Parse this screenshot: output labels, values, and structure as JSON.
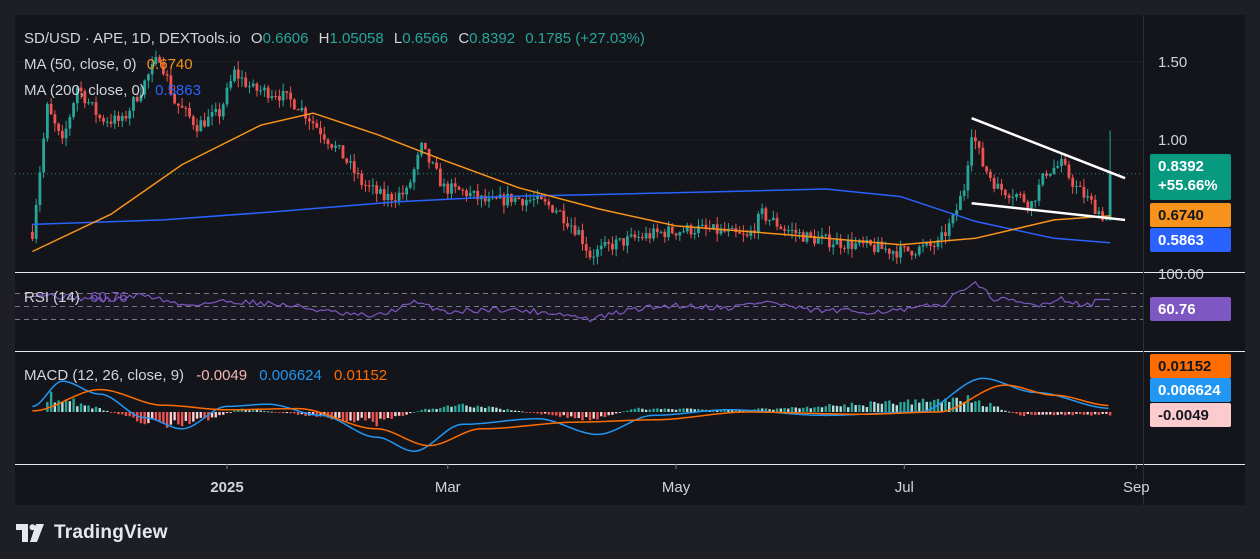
{
  "header": {
    "symbol": "SD/USD · APE, 1D, DEXTools.io",
    "open_label": "O",
    "open": "0.6606",
    "high_label": "H",
    "high": "1.05058",
    "low_label": "L",
    "low": "0.6566",
    "close_label": "C",
    "close": "0.8392",
    "change": "0.1785 (+27.03%)"
  },
  "indicators": {
    "ma50_label": "MA (50, close, 0)",
    "ma50_value": "0.6740",
    "ma200_label": "MA (200, close, 0)",
    "ma200_value": "0.5863",
    "rsi_label": "RSI (14)",
    "rsi_value": "60.76",
    "macd_label": "MACD (12, 26, close, 9)",
    "macd_hist": "-0.0049",
    "macd_line": "0.006624",
    "macd_signal": "0.01152"
  },
  "price_scale": {
    "ticks": [
      "1.50",
      "1.00"
    ],
    "rsi_top_tick": "100.00",
    "badges": {
      "price": "0.8392",
      "price_change": "+55.66%",
      "ma50": "0.6740",
      "ma200": "0.5863",
      "rsi": "60.76",
      "macd_signal": "0.01152",
      "macd_line": "0.006624",
      "macd_hist": "-0.0049"
    }
  },
  "time_axis": [
    "2025",
    "Mar",
    "May",
    "Jul",
    "Sep"
  ],
  "footer": {
    "logo_text": "TradingView",
    "logo_icon": "tradingview-logo-icon"
  },
  "colors": {
    "up": "#26a69a",
    "down": "#ef5350",
    "ma50": "#f7931a",
    "ma200": "#2962ff",
    "rsi": "#7e57c2",
    "macd": "#2196f3",
    "signal": "#ff6d00",
    "trendline": "#ffffff"
  },
  "chart_data": [
    {
      "type": "candlestick",
      "title": "SD/USD · APE, 1D, DEXTools.io",
      "x_range": [
        "2024-11-10",
        "2025-08-28"
      ],
      "y_scale": "log",
      "ylim": [
        0.42,
        1.75
      ],
      "y_ticks": [
        1.0,
        1.5
      ],
      "last": {
        "open": 0.6606,
        "high": 1.05058,
        "low": 0.6566,
        "close": 0.8392,
        "change": 0.1785,
        "change_pct": 27.03
      },
      "close_path": [
        {
          "date": "2024-11-10",
          "close": 0.62
        },
        {
          "date": "2024-11-14",
          "close": 1.18
        },
        {
          "date": "2024-11-18",
          "close": 0.98
        },
        {
          "date": "2024-11-22",
          "close": 1.32
        },
        {
          "date": "2024-11-28",
          "close": 1.12
        },
        {
          "date": "2024-12-04",
          "close": 1.1
        },
        {
          "date": "2024-12-10",
          "close": 1.35
        },
        {
          "date": "2024-12-14",
          "close": 1.55
        },
        {
          "date": "2024-12-18",
          "close": 1.22
        },
        {
          "date": "2024-12-24",
          "close": 1.08
        },
        {
          "date": "2024-12-30",
          "close": 1.15
        },
        {
          "date": "2025-01-03",
          "close": 1.42
        },
        {
          "date": "2025-01-08",
          "close": 1.3
        },
        {
          "date": "2025-01-14",
          "close": 1.28
        },
        {
          "date": "2025-01-20",
          "close": 1.2
        },
        {
          "date": "2025-01-26",
          "close": 1.05
        },
        {
          "date": "2025-02-01",
          "close": 0.92
        },
        {
          "date": "2025-02-06",
          "close": 0.8
        },
        {
          "date": "2025-02-12",
          "close": 0.74
        },
        {
          "date": "2025-02-18",
          "close": 0.76
        },
        {
          "date": "2025-02-22",
          "close": 0.96
        },
        {
          "date": "2025-02-28",
          "close": 0.78
        },
        {
          "date": "2025-03-06",
          "close": 0.76
        },
        {
          "date": "2025-03-12",
          "close": 0.72
        },
        {
          "date": "2025-03-18",
          "close": 0.74
        },
        {
          "date": "2025-03-24",
          "close": 0.73
        },
        {
          "date": "2025-03-30",
          "close": 0.7
        },
        {
          "date": "2025-04-05",
          "close": 0.62
        },
        {
          "date": "2025-04-08",
          "close": 0.55
        },
        {
          "date": "2025-04-14",
          "close": 0.58
        },
        {
          "date": "2025-04-20",
          "close": 0.6
        },
        {
          "date": "2025-04-28",
          "close": 0.62
        },
        {
          "date": "2025-05-06",
          "close": 0.63
        },
        {
          "date": "2025-05-14",
          "close": 0.62
        },
        {
          "date": "2025-05-20",
          "close": 0.6
        },
        {
          "date": "2025-05-24",
          "close": 0.68
        },
        {
          "date": "2025-05-30",
          "close": 0.63
        },
        {
          "date": "2025-06-06",
          "close": 0.6
        },
        {
          "date": "2025-06-12",
          "close": 0.59
        },
        {
          "date": "2025-06-18",
          "close": 0.58
        },
        {
          "date": "2025-06-24",
          "close": 0.57
        },
        {
          "date": "2025-06-30",
          "close": 0.56
        },
        {
          "date": "2025-07-06",
          "close": 0.57
        },
        {
          "date": "2025-07-10",
          "close": 0.58
        },
        {
          "date": "2025-07-14",
          "close": 0.66
        },
        {
          "date": "2025-07-17",
          "close": 0.78
        },
        {
          "date": "2025-07-19",
          "close": 1.05
        },
        {
          "date": "2025-07-22",
          "close": 0.88
        },
        {
          "date": "2025-07-26",
          "close": 0.78
        },
        {
          "date": "2025-07-30",
          "close": 0.76
        },
        {
          "date": "2025-08-04",
          "close": 0.72
        },
        {
          "date": "2025-08-08",
          "close": 0.85
        },
        {
          "date": "2025-08-12",
          "close": 0.88
        },
        {
          "date": "2025-08-16",
          "close": 0.78
        },
        {
          "date": "2025-08-20",
          "close": 0.72
        },
        {
          "date": "2025-08-24",
          "close": 0.6606
        },
        {
          "date": "2025-08-25",
          "close": 0.8392
        }
      ],
      "ma50": [
        {
          "date": "2024-11-10",
          "value": 0.56
        },
        {
          "date": "2024-12-01",
          "value": 0.68
        },
        {
          "date": "2024-12-20",
          "value": 0.88
        },
        {
          "date": "2025-01-10",
          "value": 1.08
        },
        {
          "date": "2025-01-24",
          "value": 1.15
        },
        {
          "date": "2025-02-10",
          "value": 1.03
        },
        {
          "date": "2025-02-28",
          "value": 0.9
        },
        {
          "date": "2025-03-20",
          "value": 0.78
        },
        {
          "date": "2025-04-10",
          "value": 0.7
        },
        {
          "date": "2025-05-01",
          "value": 0.64
        },
        {
          "date": "2025-06-01",
          "value": 0.61
        },
        {
          "date": "2025-06-30",
          "value": 0.58
        },
        {
          "date": "2025-07-20",
          "value": 0.6
        },
        {
          "date": "2025-08-10",
          "value": 0.66
        },
        {
          "date": "2025-08-25",
          "value": 0.674
        }
      ],
      "ma200": [
        {
          "date": "2024-11-10",
          "value": 0.645
        },
        {
          "date": "2024-12-15",
          "value": 0.66
        },
        {
          "date": "2025-01-15",
          "value": 0.69
        },
        {
          "date": "2025-02-15",
          "value": 0.725
        },
        {
          "date": "2025-03-15",
          "value": 0.745
        },
        {
          "date": "2025-04-15",
          "value": 0.755
        },
        {
          "date": "2025-05-15",
          "value": 0.765
        },
        {
          "date": "2025-06-10",
          "value": 0.775
        },
        {
          "date": "2025-06-30",
          "value": 0.745
        },
        {
          "date": "2025-07-20",
          "value": 0.655
        },
        {
          "date": "2025-08-10",
          "value": 0.6
        },
        {
          "date": "2025-08-25",
          "value": 0.5863
        }
      ],
      "trendlines": [
        {
          "from": {
            "date": "2025-07-19",
            "value": 1.12
          },
          "to": {
            "date": "2025-08-29",
            "value": 0.82
          }
        },
        {
          "from": {
            "date": "2025-07-19",
            "value": 0.72
          },
          "to": {
            "date": "2025-08-29",
            "value": 0.66
          }
        }
      ]
    },
    {
      "type": "line",
      "title": "RSI (14)",
      "ylim": [
        10,
        100
      ],
      "y_ticks": [
        100
      ],
      "guides": [
        70,
        50,
        30
      ],
      "series": [
        {
          "name": "RSI (14)",
          "values": [
            {
              "date": "2024-11-10",
              "value": 70
            },
            {
              "date": "2024-11-20",
              "value": 64
            },
            {
              "date": "2024-12-01",
              "value": 60
            },
            {
              "date": "2024-12-10",
              "value": 68
            },
            {
              "date": "2024-12-20",
              "value": 52
            },
            {
              "date": "2025-01-01",
              "value": 58
            },
            {
              "date": "2025-01-10",
              "value": 56
            },
            {
              "date": "2025-01-20",
              "value": 50
            },
            {
              "date": "2025-02-01",
              "value": 38
            },
            {
              "date": "2025-02-10",
              "value": 35
            },
            {
              "date": "2025-02-20",
              "value": 56
            },
            {
              "date": "2025-03-01",
              "value": 42
            },
            {
              "date": "2025-03-15",
              "value": 46
            },
            {
              "date": "2025-03-30",
              "value": 40
            },
            {
              "date": "2025-04-08",
              "value": 30
            },
            {
              "date": "2025-04-20",
              "value": 46
            },
            {
              "date": "2025-05-01",
              "value": 52
            },
            {
              "date": "2025-05-15",
              "value": 48
            },
            {
              "date": "2025-05-25",
              "value": 58
            },
            {
              "date": "2025-06-05",
              "value": 44
            },
            {
              "date": "2025-06-20",
              "value": 42
            },
            {
              "date": "2025-07-01",
              "value": 44
            },
            {
              "date": "2025-07-12",
              "value": 55
            },
            {
              "date": "2025-07-19",
              "value": 88
            },
            {
              "date": "2025-07-25",
              "value": 62
            },
            {
              "date": "2025-08-05",
              "value": 52
            },
            {
              "date": "2025-08-12",
              "value": 62
            },
            {
              "date": "2025-08-20",
              "value": 50
            },
            {
              "date": "2025-08-25",
              "value": 60.76
            }
          ]
        }
      ]
    },
    {
      "type": "line",
      "title": "MACD (12, 26, close, 9)",
      "ylim": [
        -0.09,
        0.09
      ],
      "series": [
        {
          "name": "MACD",
          "values": [
            {
              "date": "2024-11-10",
              "value": 0.01
            },
            {
              "date": "2024-11-18",
              "value": 0.055
            },
            {
              "date": "2024-11-28",
              "value": 0.032
            },
            {
              "date": "2024-12-10",
              "value": -0.01
            },
            {
              "date": "2024-12-20",
              "value": -0.03
            },
            {
              "date": "2025-01-01",
              "value": 0.01
            },
            {
              "date": "2025-01-12",
              "value": 0.014
            },
            {
              "date": "2025-01-26",
              "value": -0.006
            },
            {
              "date": "2025-02-10",
              "value": -0.045
            },
            {
              "date": "2025-02-20",
              "value": -0.07
            },
            {
              "date": "2025-03-05",
              "value": -0.022
            },
            {
              "date": "2025-03-25",
              "value": -0.012
            },
            {
              "date": "2025-04-10",
              "value": -0.04
            },
            {
              "date": "2025-04-25",
              "value": -0.006
            },
            {
              "date": "2025-05-15",
              "value": 0.004
            },
            {
              "date": "2025-06-10",
              "value": -0.006
            },
            {
              "date": "2025-07-05",
              "value": 0.0
            },
            {
              "date": "2025-07-22",
              "value": 0.06
            },
            {
              "date": "2025-08-05",
              "value": 0.035
            },
            {
              "date": "2025-08-25",
              "value": 0.006624
            }
          ]
        },
        {
          "name": "Signal",
          "values": [
            {
              "date": "2024-11-10",
              "value": 0.002
            },
            {
              "date": "2024-11-28",
              "value": 0.04
            },
            {
              "date": "2024-12-15",
              "value": 0.012
            },
            {
              "date": "2025-01-01",
              "value": 0.004
            },
            {
              "date": "2025-01-20",
              "value": 0.006
            },
            {
              "date": "2025-02-10",
              "value": -0.03
            },
            {
              "date": "2025-02-24",
              "value": -0.06
            },
            {
              "date": "2025-03-10",
              "value": -0.03
            },
            {
              "date": "2025-04-05",
              "value": -0.018
            },
            {
              "date": "2025-04-25",
              "value": -0.014
            },
            {
              "date": "2025-05-20",
              "value": 0.0
            },
            {
              "date": "2025-06-20",
              "value": -0.004
            },
            {
              "date": "2025-07-10",
              "value": 0.0
            },
            {
              "date": "2025-07-28",
              "value": 0.048
            },
            {
              "date": "2025-08-10",
              "value": 0.03
            },
            {
              "date": "2025-08-25",
              "value": 0.01152
            }
          ]
        },
        {
          "name": "Histogram",
          "values": [
            {
              "date": "2024-11-14",
              "value": 0.03
            },
            {
              "date": "2024-11-24",
              "value": 0.014
            },
            {
              "date": "2024-12-10",
              "value": -0.018
            },
            {
              "date": "2024-12-20",
              "value": -0.026
            },
            {
              "date": "2025-01-05",
              "value": 0.006
            },
            {
              "date": "2025-01-28",
              "value": -0.01
            },
            {
              "date": "2025-02-10",
              "value": -0.02
            },
            {
              "date": "2025-02-22",
              "value": 0.004
            },
            {
              "date": "2025-03-05",
              "value": 0.014
            },
            {
              "date": "2025-04-08",
              "value": -0.014
            },
            {
              "date": "2025-04-20",
              "value": 0.006
            },
            {
              "date": "2025-05-20",
              "value": 0.004
            },
            {
              "date": "2025-07-19",
              "value": 0.024
            },
            {
              "date": "2025-08-01",
              "value": -0.006
            },
            {
              "date": "2025-08-25",
              "value": -0.0049
            }
          ]
        }
      ]
    }
  ]
}
